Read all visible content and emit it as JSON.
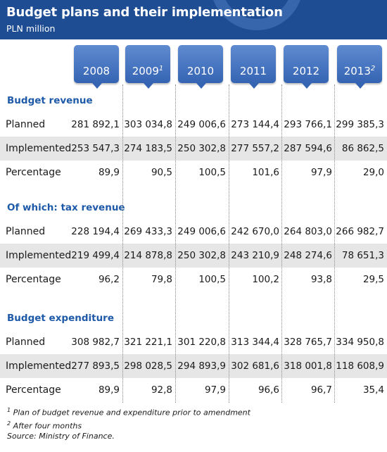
{
  "header": {
    "title": "Budget plans and their implementation",
    "subtitle": "PLN million"
  },
  "years": [
    {
      "label": "2008",
      "sup": ""
    },
    {
      "label": "2009",
      "sup": "1"
    },
    {
      "label": "2010",
      "sup": ""
    },
    {
      "label": "2011",
      "sup": ""
    },
    {
      "label": "2012",
      "sup": ""
    },
    {
      "label": "2013",
      "sup": "2"
    }
  ],
  "chart_data": {
    "type": "table",
    "title": "Budget plans and their implementation",
    "subtitle": "PLN million",
    "columns": [
      "2008",
      "2009",
      "2010",
      "2011",
      "2012",
      "2013"
    ],
    "sections": [
      {
        "title": "Budget revenue",
        "rows": [
          {
            "label": "Planned",
            "values": [
              "281 892,1",
              "303 034,8",
              "249 006,6",
              "273 144,4",
              "293 766,1",
              "299 385,3"
            ]
          },
          {
            "label": "Implemented",
            "values": [
              "253 547,3",
              "274 183,5",
              "250 302,8",
              "277 557,2",
              "287 594,6",
              "86 862,5"
            ]
          },
          {
            "label": "Percentage",
            "values": [
              "89,9",
              "90,5",
              "100,5",
              "101,6",
              "97,9",
              "29,0"
            ]
          }
        ]
      },
      {
        "title": "Of which: tax revenue",
        "rows": [
          {
            "label": "Planned",
            "values": [
              "228 194,4",
              "269 433,3",
              "249 006,6",
              "242 670,0",
              "264 803,0",
              "266 982,7"
            ]
          },
          {
            "label": "Implemented",
            "values": [
              "219 499,4",
              "214 878,8",
              "250 302,8",
              "243 210,9",
              "248 274,6",
              "78 651,3"
            ]
          },
          {
            "label": "Percentage",
            "values": [
              "96,2",
              "79,8",
              "100,5",
              "100,2",
              "93,8",
              "29,5"
            ]
          }
        ]
      },
      {
        "title": "Budget expenditure",
        "rows": [
          {
            "label": "Planned",
            "values": [
              "308 982,7",
              "321 221,1",
              "301 220,8",
              "313 344,4",
              "328 765,7",
              "334 950,8"
            ]
          },
          {
            "label": "Implemented",
            "values": [
              "277 893,5",
              "298 028,5",
              "294 893,9",
              "302 681,6",
              "318 001,8",
              "118 608,9"
            ]
          },
          {
            "label": "Percentage",
            "values": [
              "89,9",
              "92,8",
              "97,9",
              "96,6",
              "96,7",
              "35,4"
            ]
          }
        ]
      }
    ]
  },
  "footnotes": [
    {
      "mark": "1",
      "text": "Plan of budget revenue and expenditure prior to amendment"
    },
    {
      "mark": "2",
      "text": "After four months"
    },
    {
      "mark": "",
      "text": "Source: Ministry of Finance."
    }
  ],
  "colors": {
    "header_bg": "#1e4d94",
    "badge": "#4a78c2",
    "section_title": "#1e5aa8",
    "shaded_row": "#e6e6e6"
  }
}
